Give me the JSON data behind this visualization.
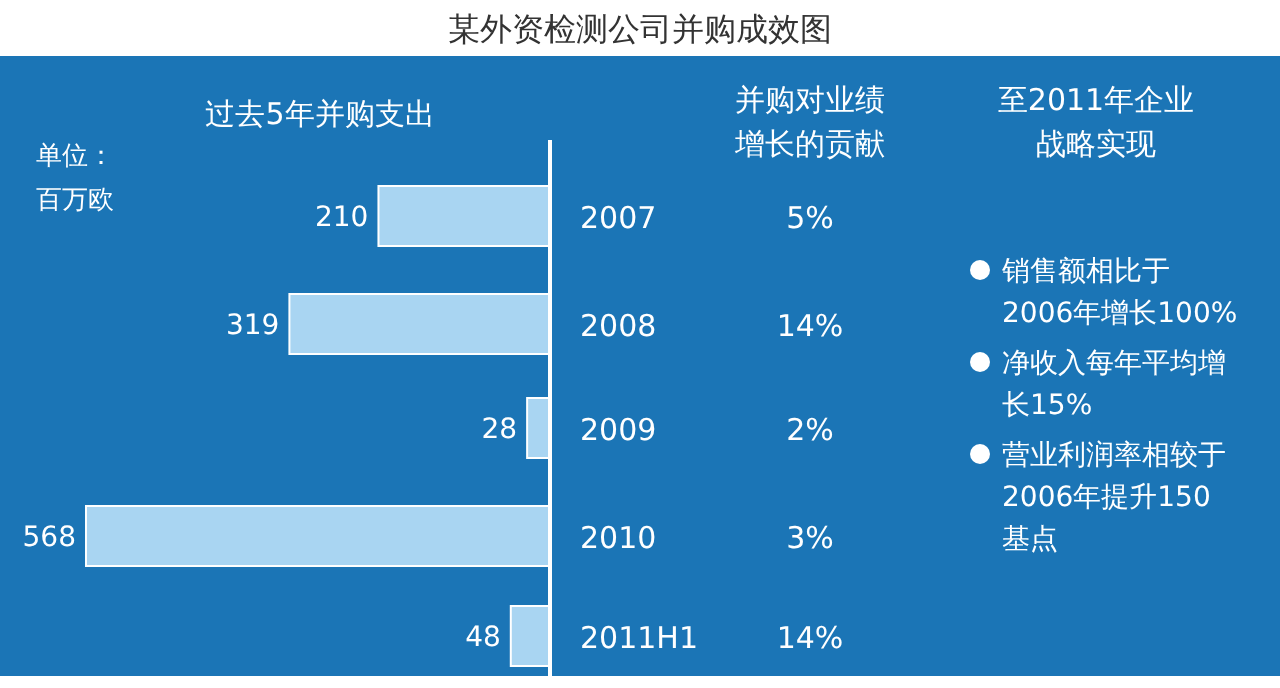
{
  "chart_data": [
    {
      "type": "bar",
      "orientation": "horizontal",
      "title": "某外资检测公司并购成效图",
      "subtitle": "过去5年并购支出",
      "annotations": [
        "单位：百万欧"
      ],
      "categories": [
        "2007",
        "2008",
        "2009",
        "2010",
        "2011H1"
      ],
      "values": [
        210,
        319,
        28,
        568,
        48
      ],
      "color": "#a9d5f2",
      "data_labels": true
    },
    {
      "type": "other",
      "title": "并购对业绩增长的贡献",
      "annotations": [
        "5%",
        "14%",
        "2%",
        "3%",
        "14%"
      ]
    },
    {
      "type": "other",
      "title": "至2011年企业战略实现",
      "annotations": [
        "销售额相比于2006年增长100%",
        "净收入每年平均增长15%",
        "营业利润率相较于2006年提升150基点"
      ]
    }
  ]
}
